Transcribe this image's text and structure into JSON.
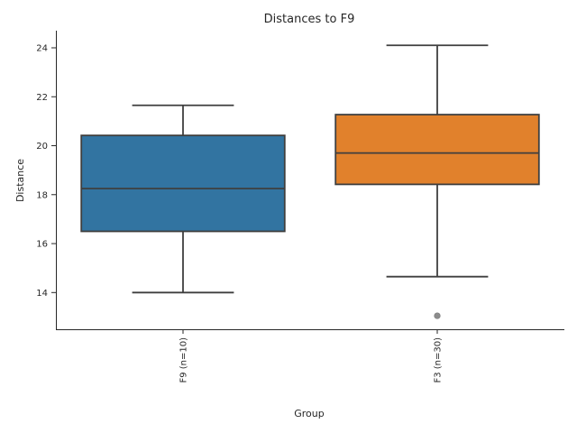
{
  "chart_data": {
    "type": "box",
    "title": "Distances to F9",
    "xlabel": "Group",
    "ylabel": "Distance",
    "ylim": [
      12.5,
      24.7
    ],
    "y_ticks": [
      14,
      16,
      18,
      20,
      22,
      24
    ],
    "grid": false,
    "categories": [
      "F9 (n=10)",
      "F3 (n=30)"
    ],
    "boxes": [
      {
        "category": "F9 (n=10)",
        "color": "#3274a1",
        "whisker_low": 14.0,
        "q1": 16.5,
        "median": 18.25,
        "q3": 20.42,
        "whisker_high": 21.65,
        "outliers": []
      },
      {
        "category": "F3 (n=30)",
        "color": "#e1812c",
        "whisker_low": 14.65,
        "q1": 18.42,
        "median": 19.7,
        "q3": 21.27,
        "whisker_high": 24.1,
        "outliers": [
          13.05
        ]
      }
    ],
    "outlier_color": "#8c8c8c"
  }
}
